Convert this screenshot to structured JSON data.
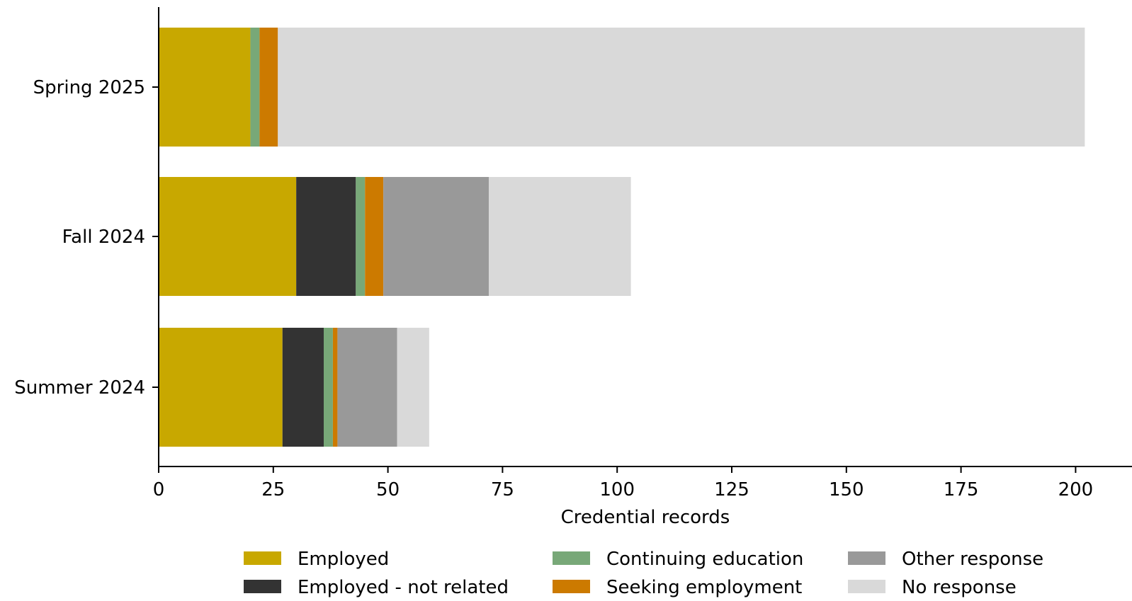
{
  "chart_data": {
    "type": "bar",
    "orientation": "horizontal",
    "stacked": true,
    "title": "",
    "xlabel": "Credential records",
    "ylabel": "",
    "xlim": [
      0,
      212
    ],
    "xticks": [
      0,
      25,
      50,
      75,
      100,
      125,
      150,
      175,
      200
    ],
    "categories": [
      "Spring 2025",
      "Fall 2024",
      "Summer 2024"
    ],
    "series": [
      {
        "name": "Employed",
        "color": "#c8a800",
        "values": [
          20,
          30,
          27
        ]
      },
      {
        "name": "Employed - not related",
        "color": "#333333",
        "values": [
          0,
          13,
          9
        ]
      },
      {
        "name": "Continuing education",
        "color": "#78a878",
        "values": [
          2,
          2,
          2
        ]
      },
      {
        "name": "Seeking employment",
        "color": "#cc7a00",
        "values": [
          4,
          4,
          1
        ]
      },
      {
        "name": "Other response",
        "color": "#999999",
        "values": [
          0,
          23,
          13
        ]
      },
      {
        "name": "No response",
        "color": "#d9d9d9",
        "values": [
          176,
          31,
          7
        ]
      }
    ],
    "grid": false,
    "legend_position": "bottom"
  }
}
